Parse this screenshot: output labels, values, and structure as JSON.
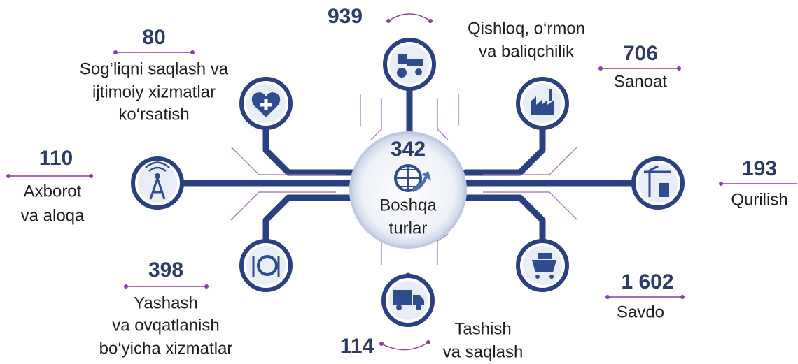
{
  "center": {
    "value": "342",
    "label": [
      "Boshqa",
      "turlar"
    ]
  },
  "nodes": [
    {
      "value": "939",
      "label": [
        "Qishloq, o‘rmon",
        "va baliqchilik"
      ]
    },
    {
      "value": "80",
      "label": [
        "Sog‘liqni saqlash va",
        "ijtimoiy xizmatlar",
        "ko‘rsatish"
      ]
    },
    {
      "value": "706",
      "label": [
        "Sanoat"
      ]
    },
    {
      "value": "110",
      "label": [
        "Axborot",
        "va aloqa"
      ]
    },
    {
      "value": "193",
      "label": [
        "Qurilish"
      ]
    },
    {
      "value": "398",
      "label": [
        "Yashash",
        "va ovqatlanish",
        "bo‘yicha xizmatlar"
      ]
    },
    {
      "value": "1 602",
      "label": [
        "Savdo"
      ]
    },
    {
      "value": "114",
      "label": [
        "Tashish",
        "va saqlash"
      ]
    }
  ]
}
